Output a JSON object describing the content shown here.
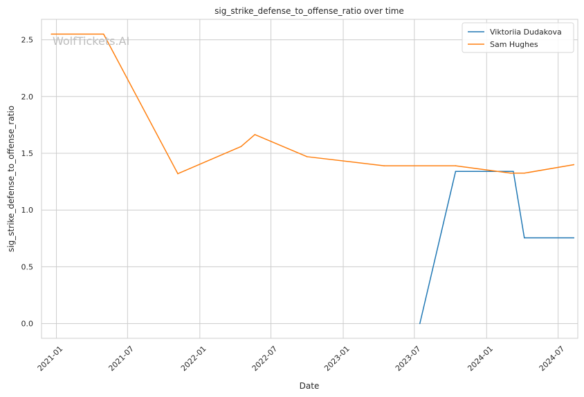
{
  "chart_data": {
    "type": "line",
    "title": "sig_strike_defense_to_offense_ratio over time",
    "xlabel": "Date",
    "ylabel": "sig_strike_defense_to_offense_ratio",
    "watermark": "WolfTickets.AI",
    "xlim": [
      "2020-11-24",
      "2024-08-20"
    ],
    "ylim": [
      -0.13,
      2.68
    ],
    "x_ticks": [
      "2021-01",
      "2021-07",
      "2022-01",
      "2022-07",
      "2023-01",
      "2023-07",
      "2024-01",
      "2024-07"
    ],
    "y_ticks": [
      "0.0",
      "0.5",
      "1.0",
      "1.5",
      "2.0",
      "2.5"
    ],
    "y_tick_values": [
      0,
      0.5,
      1.0,
      1.5,
      2.0,
      2.5
    ],
    "grid": true,
    "legend_position": "top-right",
    "series": [
      {
        "name": "Viktoriia Dudakova",
        "color": "#1f77b4",
        "points": [
          {
            "x": "2023-07-15",
            "y": 0.0
          },
          {
            "x": "2023-10-14",
            "y": 1.34
          },
          {
            "x": "2024-03-09",
            "y": 1.34
          },
          {
            "x": "2024-04-06",
            "y": 0.755
          },
          {
            "x": "2024-08-10",
            "y": 0.755
          }
        ]
      },
      {
        "name": "Sam Hughes",
        "color": "#ff7f0e",
        "points": [
          {
            "x": "2020-12-19",
            "y": 2.55
          },
          {
            "x": "2021-05-01",
            "y": 2.55
          },
          {
            "x": "2021-11-06",
            "y": 1.32
          },
          {
            "x": "2022-04-16",
            "y": 1.56
          },
          {
            "x": "2022-05-21",
            "y": 1.665
          },
          {
            "x": "2022-10-01",
            "y": 1.47
          },
          {
            "x": "2023-04-15",
            "y": 1.39
          },
          {
            "x": "2023-10-14",
            "y": 1.39
          },
          {
            "x": "2024-03-02",
            "y": 1.325
          },
          {
            "x": "2024-04-06",
            "y": 1.325
          },
          {
            "x": "2024-08-10",
            "y": 1.4
          }
        ]
      }
    ]
  }
}
